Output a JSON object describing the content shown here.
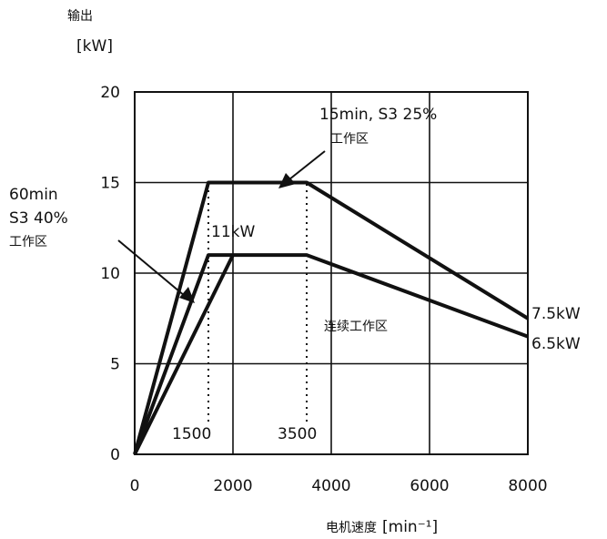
{
  "chart_data": {
    "type": "line",
    "title": "",
    "xlabel": "电机速度",
    "xlabel_unit": "[min⁻¹]",
    "ylabel_line1": "输出",
    "ylabel_line2": "[kW]",
    "xlim": [
      0,
      8000
    ],
    "ylim": [
      0,
      20
    ],
    "x_ticks": [
      0,
      2000,
      4000,
      6000,
      8000
    ],
    "y_ticks": [
      0,
      5,
      10,
      15,
      20
    ],
    "grid": true,
    "series": [
      {
        "x": [
          0,
          1500,
          3500,
          8000
        ],
        "y": [
          0,
          15,
          15,
          7.5
        ]
      },
      {
        "x": [
          0,
          1500,
          3500,
          8000
        ],
        "y": [
          0,
          11,
          11,
          6.5
        ]
      },
      {
        "x": [
          0,
          2000
        ],
        "y": [
          0,
          11
        ]
      }
    ],
    "guide_x": [
      1500,
      3500
    ],
    "annotations": {
      "s3_25_line1": "15min, S3 25%",
      "s3_25_line2": "工作区",
      "s3_40_line1": "60min",
      "s3_40_line2": "S3 40%",
      "s3_40_line3": "工作区",
      "rated_11": "11kW",
      "continuous": "连续工作区",
      "end_75": "7.5kW",
      "end_65": "6.5kW",
      "speed_1500": "1500",
      "speed_3500": "3500"
    }
  }
}
